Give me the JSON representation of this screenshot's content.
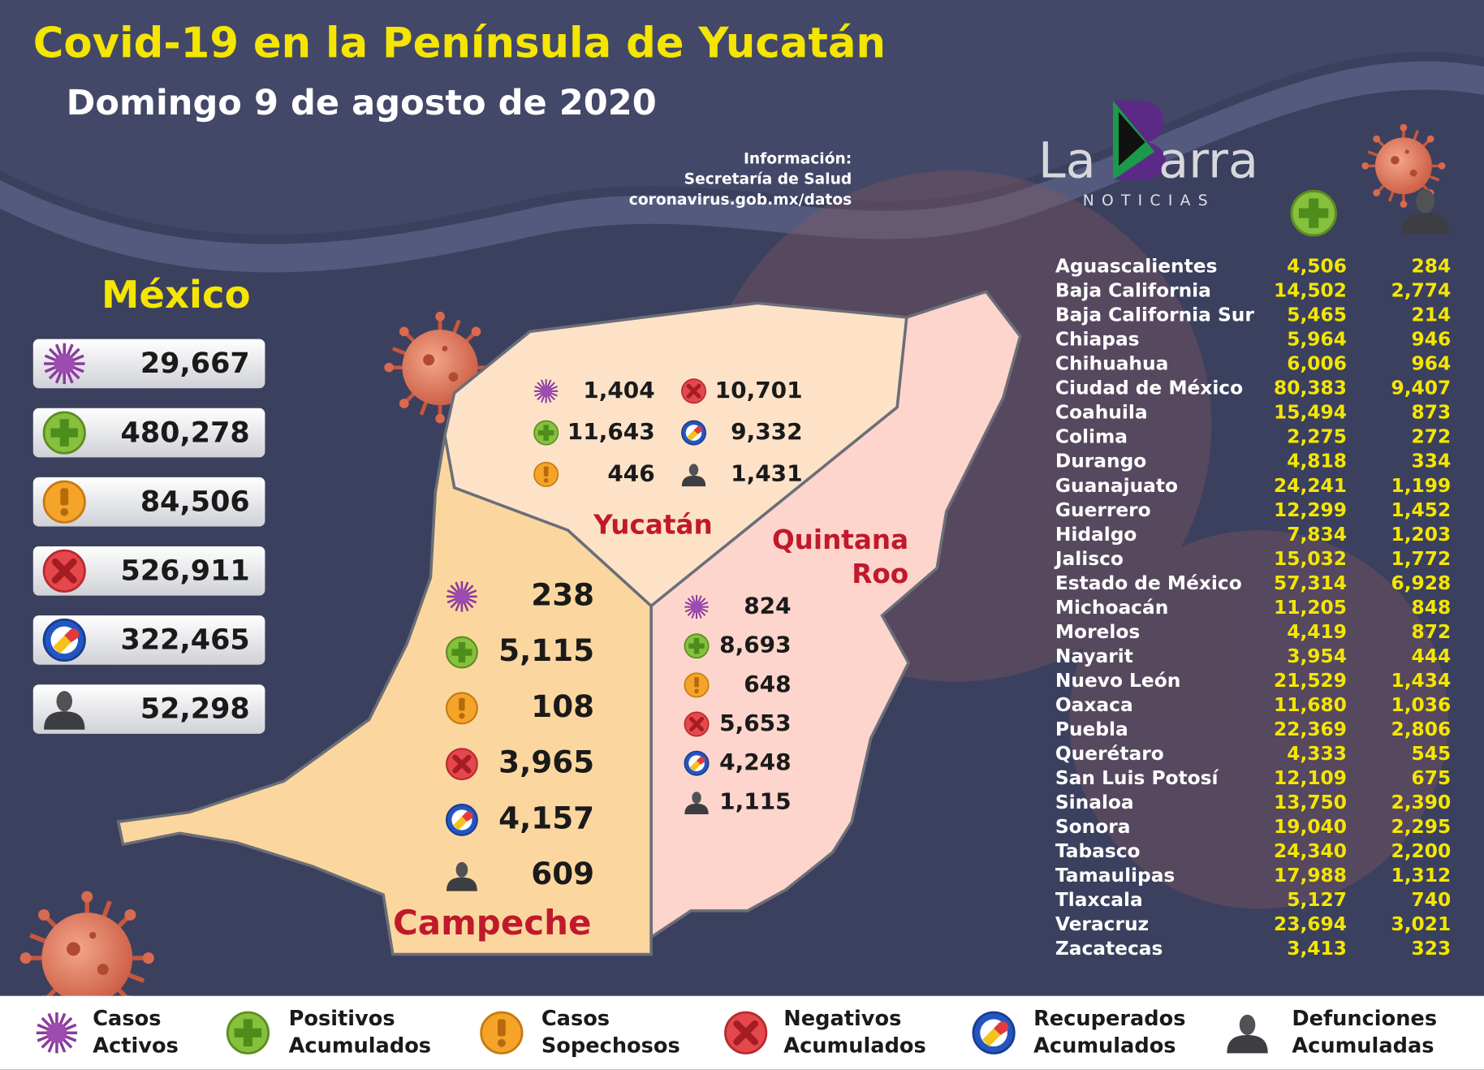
{
  "header": {
    "title": "Covid-19 en la Península de Yucatán",
    "subtitle": "Domingo 9 de agosto de 2020",
    "source": [
      "Información:",
      "Secretaría de Salud",
      "coronavirus.gob.mx/datos"
    ],
    "logo": {
      "left": "La",
      "right": "arra",
      "tagline": "NOTICIAS"
    }
  },
  "mexico": {
    "label": "México",
    "values": [
      "29,667",
      "480,278",
      "84,506",
      "526,911",
      "322,465",
      "52,298"
    ]
  },
  "yucatan": {
    "label": "Yucatán",
    "values": [
      "1,404",
      "11,643",
      "446",
      "10,701",
      "9,332",
      "1,431"
    ]
  },
  "campeche": {
    "label": "Campeche",
    "values": [
      "238",
      "5,115",
      "108",
      "3,965",
      "4,157",
      "609"
    ]
  },
  "quintana_roo": {
    "label": [
      "Quintana",
      "Roo"
    ],
    "values": [
      "824",
      "8,693",
      "648",
      "5,653",
      "4,248",
      "1,115"
    ]
  },
  "states": {
    "rows": [
      [
        "Aguascalientes",
        "4,506",
        "284"
      ],
      [
        "Baja California",
        "14,502",
        "2,774"
      ],
      [
        "Baja California Sur",
        "5,465",
        "214"
      ],
      [
        "Chiapas",
        "5,964",
        "946"
      ],
      [
        "Chihuahua",
        "6,006",
        "964"
      ],
      [
        "Ciudad de México",
        "80,383",
        "9,407"
      ],
      [
        "Coahuila",
        "15,494",
        "873"
      ],
      [
        "Colima",
        "2,275",
        "272"
      ],
      [
        "Durango",
        "4,818",
        "334"
      ],
      [
        "Guanajuato",
        "24,241",
        "1,199"
      ],
      [
        "Guerrero",
        "12,299",
        "1,452"
      ],
      [
        "Hidalgo",
        "7,834",
        "1,203"
      ],
      [
        "Jalisco",
        "15,032",
        "1,772"
      ],
      [
        "Estado de México",
        "57,314",
        "6,928"
      ],
      [
        "Michoacán",
        "11,205",
        "848"
      ],
      [
        "Morelos",
        "4,419",
        "872"
      ],
      [
        "Nayarit",
        "3,954",
        "444"
      ],
      [
        "Nuevo León",
        "21,529",
        "1,434"
      ],
      [
        "Oaxaca",
        "11,680",
        "1,036"
      ],
      [
        "Puebla",
        "22,369",
        "2,806"
      ],
      [
        "Querétaro",
        "4,333",
        "545"
      ],
      [
        "San Luis Potosí",
        "12,109",
        "675"
      ],
      [
        "Sinaloa",
        "13,750",
        "2,390"
      ],
      [
        "Sonora",
        "19,040",
        "2,295"
      ],
      [
        "Tabasco",
        "24,340",
        "2,200"
      ],
      [
        "Tamaulipas",
        "17,988",
        "1,312"
      ],
      [
        "Tlaxcala",
        "5,127",
        "740"
      ],
      [
        "Veracruz",
        "23,694",
        "3,021"
      ],
      [
        "Zacatecas",
        "3,413",
        "323"
      ]
    ]
  },
  "legend": [
    [
      "Casos",
      "Activos"
    ],
    [
      "Positivos",
      "Acumulados"
    ],
    [
      "Casos",
      "Sopechosos"
    ],
    [
      "Negativos",
      "Acumulados"
    ],
    [
      "Recuperados",
      "Acumulados"
    ],
    [
      "Defunciones",
      "Acumuladas"
    ]
  ]
}
